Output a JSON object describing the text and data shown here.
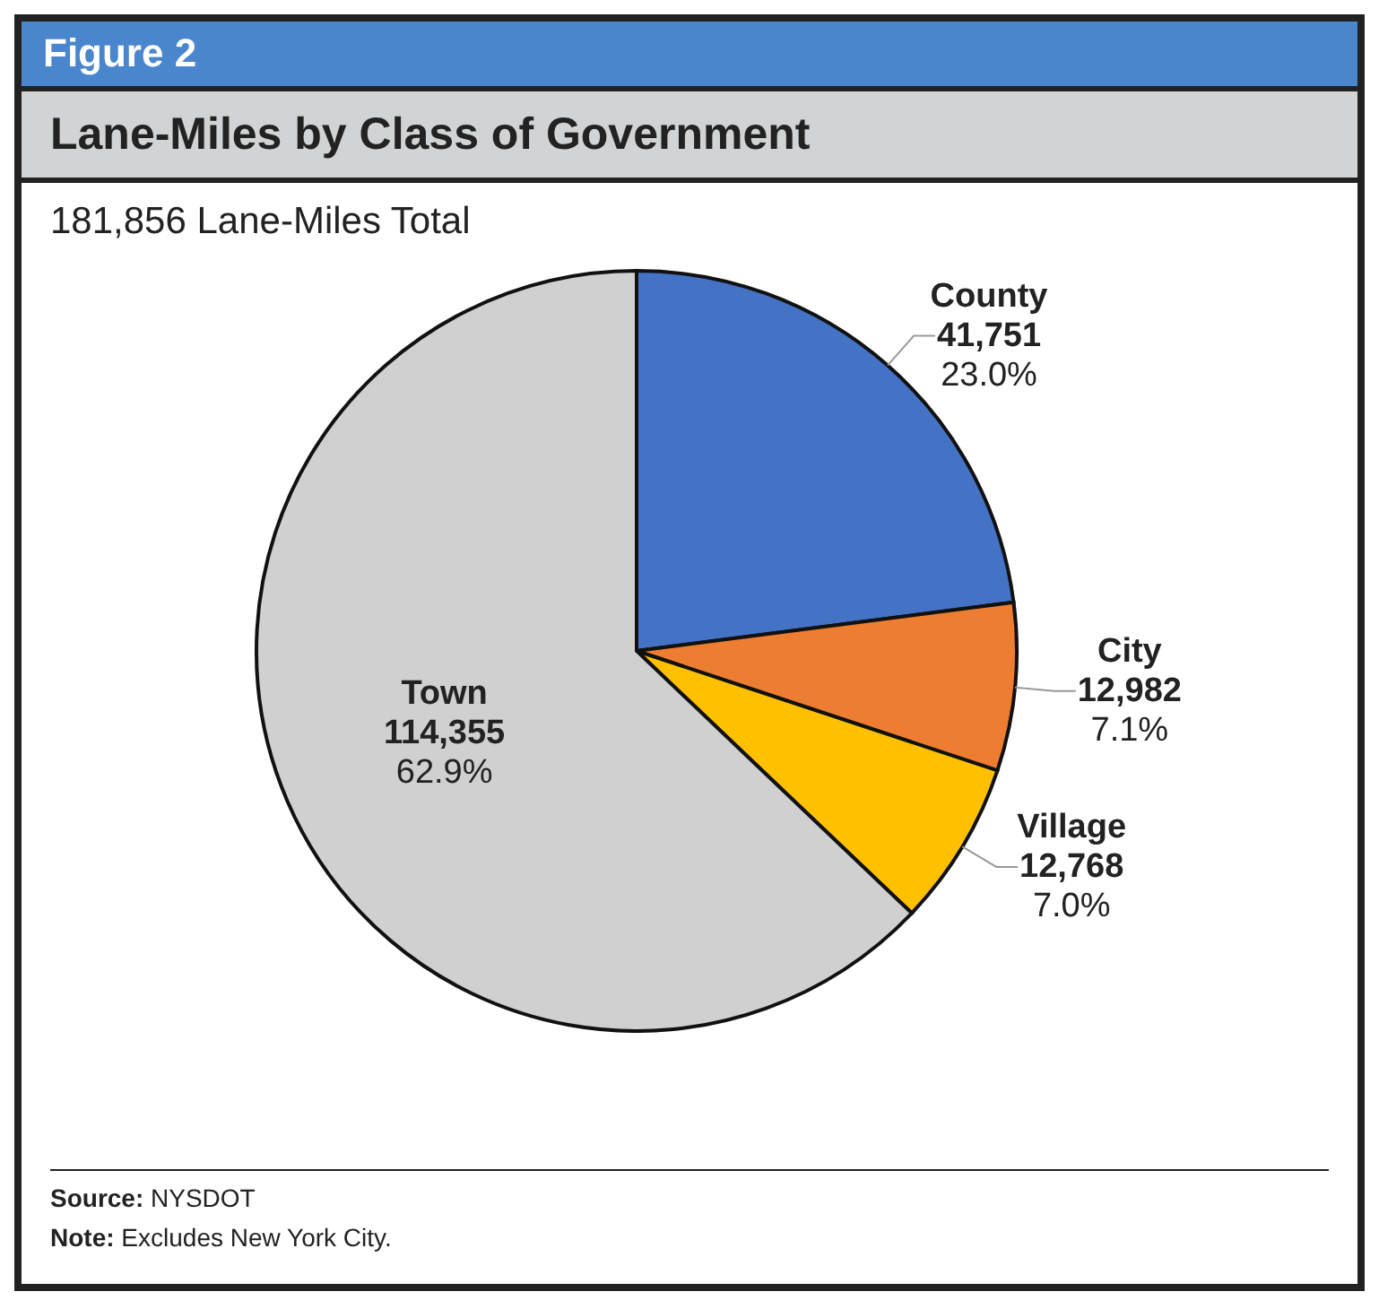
{
  "chart_data": {
    "type": "pie",
    "title": "Lane-Miles by Class of Government",
    "subtitle": "181,856 Lane-Miles Total",
    "annotations": [
      "Figure 2",
      "Source: NYSDOT",
      "Note: Excludes New York City."
    ],
    "categories": [
      "County",
      "City",
      "Village",
      "Town"
    ],
    "values": [
      41751,
      12982,
      12768,
      114355
    ],
    "colors": [
      "#4472c4",
      "#ed7d31",
      "#ffc000",
      "#d0d0d0"
    ],
    "value_labels": [
      "41,751\n23.0%",
      "12,982\n7.1%",
      "12,768\n7.0%",
      "114,355\n62.9%"
    ]
  }
}
